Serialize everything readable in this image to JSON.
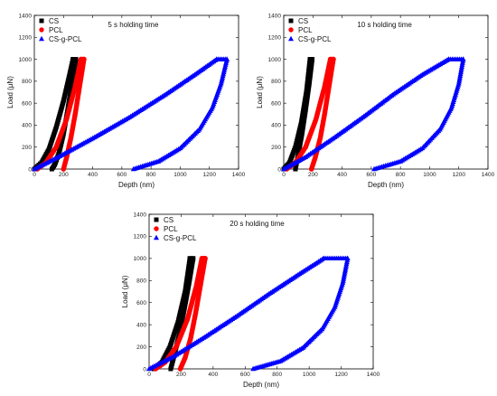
{
  "chart_data": [
    {
      "type": "scatter",
      "title": "5 s holding time",
      "xlabel": "Depth (nm)",
      "ylabel": "Load (μN)",
      "xlim": [
        0,
        1400
      ],
      "ylim": [
        0,
        1400
      ],
      "xticks": [
        0,
        200,
        400,
        600,
        800,
        1000,
        1200,
        1400
      ],
      "yticks": [
        0,
        200,
        400,
        600,
        800,
        1000,
        1200,
        1400
      ],
      "legend_position": "top-left",
      "series": [
        {
          "name": "CS",
          "color": "#000000",
          "marker": "square",
          "loading": [
            [
              0,
              0
            ],
            [
              50,
              60
            ],
            [
              100,
              180
            ],
            [
              150,
              380
            ],
            [
              200,
              620
            ],
            [
              240,
              850
            ],
            [
              265,
              1000
            ]
          ],
          "hold": [
            [
              265,
              1000
            ],
            [
              285,
              1000
            ]
          ],
          "unloading": [
            [
              285,
              1000
            ],
            [
              260,
              800
            ],
            [
              230,
              550
            ],
            [
              200,
              320
            ],
            [
              170,
              150
            ],
            [
              140,
              40
            ],
            [
              120,
              0
            ]
          ]
        },
        {
          "name": "PCL",
          "color": "#ff0000",
          "marker": "circle",
          "loading": [
            [
              20,
              0
            ],
            [
              80,
              60
            ],
            [
              150,
              200
            ],
            [
              220,
              450
            ],
            [
              280,
              750
            ],
            [
              320,
              1000
            ]
          ],
          "hold": [
            [
              320,
              1000
            ],
            [
              340,
              1000
            ]
          ],
          "unloading": [
            [
              340,
              1000
            ],
            [
              310,
              750
            ],
            [
              280,
              500
            ],
            [
              250,
              280
            ],
            [
              220,
              100
            ],
            [
              200,
              0
            ]
          ]
        },
        {
          "name": "CS-g-PCL",
          "color": "#0000ff",
          "marker": "triangle",
          "loading": [
            [
              0,
              0
            ],
            [
              150,
              100
            ],
            [
              400,
              280
            ],
            [
              650,
              470
            ],
            [
              900,
              680
            ],
            [
              1100,
              860
            ],
            [
              1250,
              1000
            ]
          ],
          "hold": [
            [
              1250,
              1000
            ],
            [
              1320,
              1000
            ]
          ],
          "unloading": [
            [
              1320,
              1000
            ],
            [
              1280,
              780
            ],
            [
              1220,
              560
            ],
            [
              1130,
              360
            ],
            [
              1000,
              190
            ],
            [
              850,
              70
            ],
            [
              680,
              0
            ]
          ]
        }
      ]
    },
    {
      "type": "scatter",
      "title": "10 s holding time",
      "xlabel": "Depth (nm)",
      "ylabel": "Load (μN)",
      "xlim": [
        0,
        1400
      ],
      "ylim": [
        0,
        1400
      ],
      "xticks": [
        0,
        200,
        400,
        600,
        800,
        1000,
        1200,
        1400
      ],
      "yticks": [
        0,
        200,
        400,
        600,
        800,
        1000,
        1200,
        1400
      ],
      "legend_position": "top-left",
      "series": [
        {
          "name": "CS",
          "color": "#000000",
          "marker": "square",
          "loading": [
            [
              0,
              0
            ],
            [
              40,
              60
            ],
            [
              80,
              200
            ],
            [
              120,
              420
            ],
            [
              155,
              700
            ],
            [
              180,
              1000
            ]
          ],
          "hold": [
            [
              180,
              1000
            ],
            [
              195,
              1000
            ]
          ],
          "unloading": [
            [
              195,
              1000
            ],
            [
              175,
              780
            ],
            [
              150,
              540
            ],
            [
              125,
              320
            ],
            [
              100,
              140
            ],
            [
              80,
              0
            ]
          ]
        },
        {
          "name": "PCL",
          "color": "#ff0000",
          "marker": "circle",
          "loading": [
            [
              20,
              0
            ],
            [
              80,
              60
            ],
            [
              150,
              200
            ],
            [
              220,
              450
            ],
            [
              280,
              750
            ],
            [
              320,
              1000
            ]
          ],
          "hold": [
            [
              320,
              1000
            ],
            [
              340,
              1000
            ]
          ],
          "unloading": [
            [
              340,
              1000
            ],
            [
              310,
              750
            ],
            [
              280,
              500
            ],
            [
              250,
              280
            ],
            [
              215,
              100
            ],
            [
              190,
              0
            ]
          ]
        },
        {
          "name": "CS-g-PCL",
          "color": "#0000ff",
          "marker": "triangle",
          "loading": [
            [
              0,
              0
            ],
            [
              150,
              110
            ],
            [
              350,
              290
            ],
            [
              550,
              480
            ],
            [
              750,
              680
            ],
            [
              950,
              860
            ],
            [
              1130,
              1000
            ]
          ],
          "hold": [
            [
              1130,
              1000
            ],
            [
              1230,
              1000
            ]
          ],
          "unloading": [
            [
              1230,
              1000
            ],
            [
              1200,
              780
            ],
            [
              1150,
              560
            ],
            [
              1070,
              360
            ],
            [
              950,
              190
            ],
            [
              800,
              70
            ],
            [
              620,
              0
            ]
          ]
        }
      ]
    },
    {
      "type": "scatter",
      "title": "20 s holding time",
      "xlabel": "Depth (nm)",
      "ylabel": "Load (μN)",
      "xlim": [
        0,
        1400
      ],
      "ylim": [
        0,
        1400
      ],
      "xticks": [
        0,
        200,
        400,
        600,
        800,
        1000,
        1200,
        1400
      ],
      "yticks": [
        0,
        200,
        400,
        600,
        800,
        1000,
        1200,
        1400
      ],
      "legend_position": "top-left",
      "series": [
        {
          "name": "CS",
          "color": "#000000",
          "marker": "square",
          "loading": [
            [
              30,
              0
            ],
            [
              80,
              60
            ],
            [
              130,
              200
            ],
            [
              180,
              420
            ],
            [
              225,
              700
            ],
            [
              255,
              1000
            ]
          ],
          "hold": [
            [
              255,
              1000
            ],
            [
              275,
              1000
            ]
          ],
          "unloading": [
            [
              275,
              1000
            ],
            [
              250,
              780
            ],
            [
              220,
              540
            ],
            [
              190,
              320
            ],
            [
              160,
              140
            ],
            [
              135,
              0
            ]
          ]
        },
        {
          "name": "PCL",
          "color": "#ff0000",
          "marker": "circle",
          "loading": [
            [
              40,
              0
            ],
            [
              100,
              60
            ],
            [
              170,
              200
            ],
            [
              240,
              450
            ],
            [
              295,
              750
            ],
            [
              330,
              1000
            ]
          ],
          "hold": [
            [
              330,
              1000
            ],
            [
              350,
              1000
            ]
          ],
          "unloading": [
            [
              350,
              1000
            ],
            [
              320,
              750
            ],
            [
              290,
              500
            ],
            [
              260,
              280
            ],
            [
              225,
              100
            ],
            [
              195,
              0
            ]
          ]
        },
        {
          "name": "CS-g-PCL",
          "color": "#0000ff",
          "marker": "triangle",
          "loading": [
            [
              0,
              0
            ],
            [
              150,
              110
            ],
            [
              350,
              290
            ],
            [
              550,
              480
            ],
            [
              750,
              680
            ],
            [
              950,
              870
            ],
            [
              1090,
              1000
            ]
          ],
          "hold": [
            [
              1090,
              1000
            ],
            [
              1240,
              1000
            ]
          ],
          "unloading": [
            [
              1240,
              1000
            ],
            [
              1210,
              780
            ],
            [
              1160,
              560
            ],
            [
              1080,
              360
            ],
            [
              960,
              190
            ],
            [
              820,
              70
            ],
            [
              650,
              0
            ]
          ]
        }
      ]
    }
  ]
}
